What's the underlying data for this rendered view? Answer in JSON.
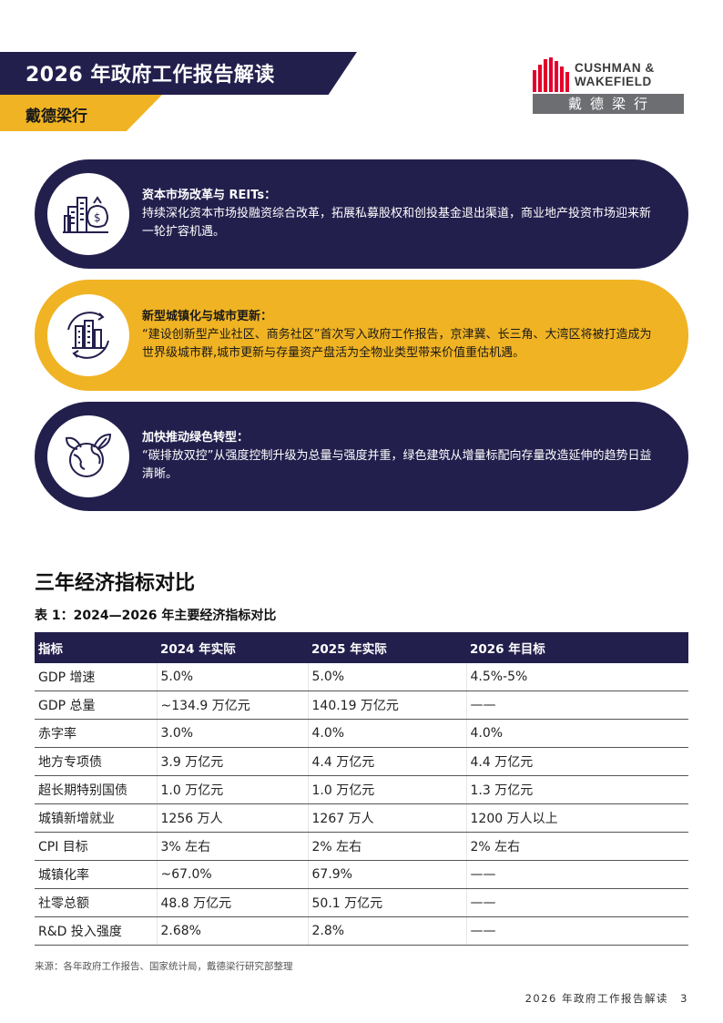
{
  "header": {
    "title": "2026 年政府工作报告解读",
    "subtitle": "戴德梁行"
  },
  "logo": {
    "line1": "CUSHMAN &",
    "line2": "WAKEFIELD",
    "cn": "戴德梁行"
  },
  "cards": [
    {
      "heading": "资本市场改革与 REITs：",
      "body": "持续深化资本市场投融资综合改革，拓展私募股权和创投基金退出渠道，商业地产投资市场迎来新一轮扩容机遇。",
      "icon": "city-money-icon",
      "color": "#231f4d"
    },
    {
      "heading": "新型城镇化与城市更新：",
      "body": "“建设创新型产业社区、商务社区”首次写入政府工作报告，京津冀、长三角、大湾区将被打造成为世界级城市群,城市更新与存量资产盘活为全物业类型带来价值重估机遇。",
      "icon": "urban-renewal-icon",
      "color": "#f0b323"
    },
    {
      "heading": "加快推动绿色转型：",
      "body": "“碳排放双控”从强度控制升级为总量与强度并重，绿色建筑从增量标配向存量改造延伸的趋势日益清晰。",
      "icon": "green-globe-icon",
      "color": "#231f4d"
    }
  ],
  "section_title": "三年经济指标对比",
  "table": {
    "caption": "表 1：2024—2026 年主要经济指标对比",
    "headers": [
      "指标",
      "2024 年实际",
      "2025 年实际",
      "2026 年目标"
    ],
    "rows": [
      [
        "GDP 增速",
        "5.0%",
        "5.0%",
        "4.5%-5%"
      ],
      [
        "GDP 总量",
        "~134.9 万亿元",
        "140.19 万亿元",
        "——"
      ],
      [
        "赤字率",
        "3.0%",
        "4.0%",
        "4.0%"
      ],
      [
        "地方专项债",
        "3.9 万亿元",
        "4.4 万亿元",
        "4.4 万亿元"
      ],
      [
        "超长期特别国债",
        "1.0 万亿元",
        "1.0 万亿元",
        "1.3 万亿元"
      ],
      [
        "城镇新增就业",
        "1256 万人",
        "1267 万人",
        "1200 万人以上"
      ],
      [
        "CPI 目标",
        "3% 左右",
        "2% 左右",
        "2% 左右"
      ],
      [
        "城镇化率",
        "~67.0%",
        "67.9%",
        "——"
      ],
      [
        "社零总额",
        "48.8 万亿元",
        "50.1 万亿元",
        "——"
      ],
      [
        "R&D 投入强度",
        "2.68%",
        "2.8%",
        "——"
      ]
    ]
  },
  "source": "来源：各年政府工作报告、国家统计局，戴德梁行研究部整理",
  "footer": {
    "text": "2026 年政府工作报告解读",
    "page": "3"
  }
}
